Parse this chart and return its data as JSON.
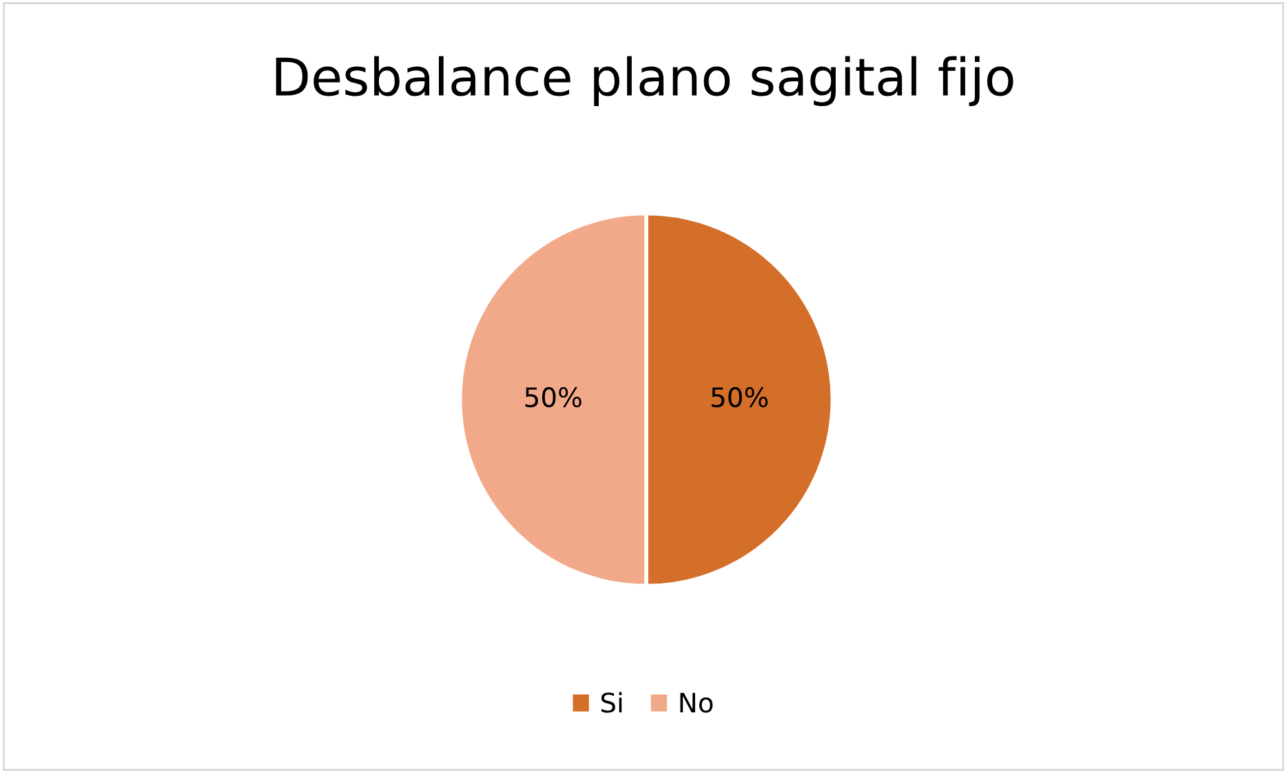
{
  "chart_data": {
    "type": "pie",
    "title": "Desbalance plano sagital fijo",
    "categories": [
      "Si",
      "No"
    ],
    "values": [
      50,
      50
    ],
    "colors": [
      "#d46f2a",
      "#f1a98a"
    ],
    "value_labels": [
      "50%",
      "50%"
    ],
    "legend": "bottom"
  }
}
